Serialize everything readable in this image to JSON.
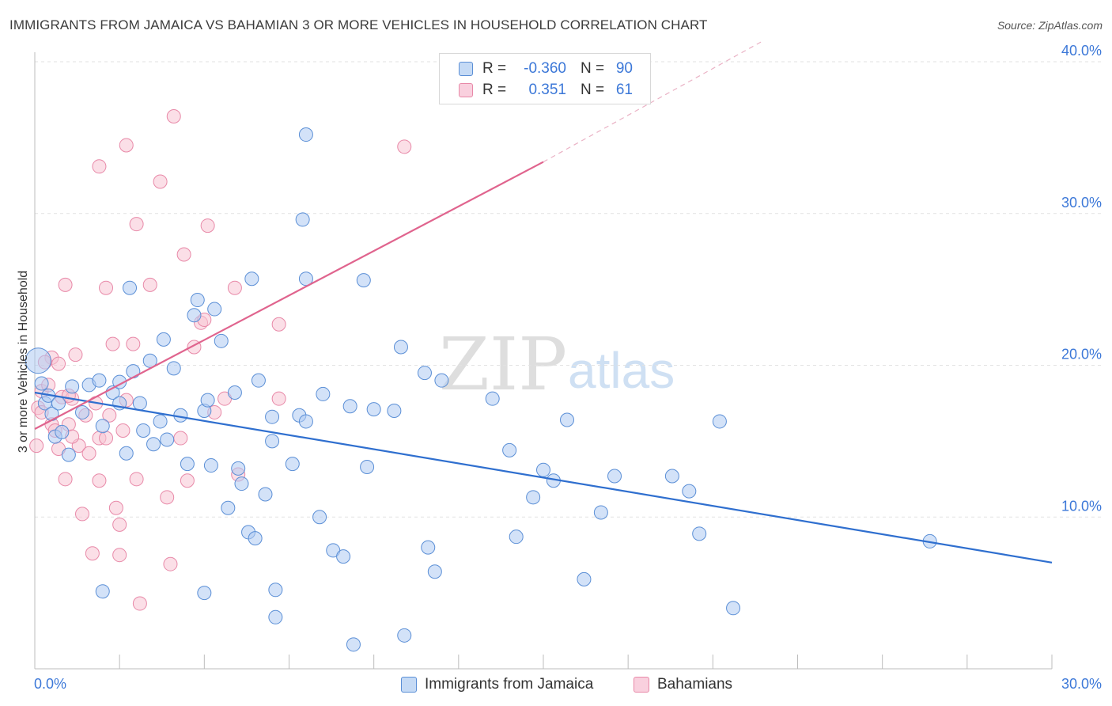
{
  "title": "IMMIGRANTS FROM JAMAICA VS BAHAMIAN 3 OR MORE VEHICLES IN HOUSEHOLD CORRELATION CHART",
  "source": "Source: ZipAtlas.com",
  "watermark": {
    "zip": "ZIP",
    "atlas": "atlas"
  },
  "colors": {
    "jamaica_fill": "#aecbf2",
    "jamaica_stroke": "#5b8fd6",
    "jamaica_line": "#2f6fcf",
    "bahamian_fill": "#f7c4d4",
    "bahamian_stroke": "#e889a8",
    "bahamian_line": "#e0648e",
    "accent_text": "#3c78d8"
  },
  "legend": {
    "rows": [
      {
        "r_label": "R =",
        "r_value": "-0.360",
        "n_label": "N =",
        "n_value": "90"
      },
      {
        "r_label": "R =",
        "r_value": "0.351",
        "n_label": "N =",
        "n_value": "61"
      }
    ]
  },
  "bottom_legend": [
    "Immigrants from Jamaica",
    "Bahamians"
  ],
  "chart_data": {
    "type": "scatter",
    "title": "IMMIGRANTS FROM JAMAICA VS BAHAMIAN 3 OR MORE VEHICLES IN HOUSEHOLD CORRELATION CHART",
    "xlabel": "",
    "ylabel": "3 or more Vehicles in Household",
    "xlim": [
      0,
      30
    ],
    "ylim": [
      0,
      40
    ],
    "x_ticks": [
      "0.0%",
      "30.0%"
    ],
    "y_ticks": [
      {
        "value": 10,
        "label": "10.0%"
      },
      {
        "value": 20,
        "label": "20.0%"
      },
      {
        "value": 30,
        "label": "30.0%"
      },
      {
        "value": 40,
        "label": "40.0%"
      }
    ],
    "grid": true,
    "legend_position": "top-center",
    "series": [
      {
        "name": "Immigrants from Jamaica",
        "r": -0.36,
        "n": 90,
        "trend": {
          "x": [
            0,
            30
          ],
          "y": [
            18.2,
            7.0
          ],
          "dashed_extension": false
        },
        "points": [
          [
            0.1,
            20.3
          ],
          [
            0.2,
            18.8
          ],
          [
            0.3,
            17.5
          ],
          [
            0.4,
            18.0
          ],
          [
            0.5,
            16.8
          ],
          [
            0.6,
            15.3
          ],
          [
            0.7,
            17.5
          ],
          [
            0.8,
            15.6
          ],
          [
            1.0,
            14.1
          ],
          [
            1.1,
            18.6
          ],
          [
            1.4,
            16.9
          ],
          [
            1.6,
            18.7
          ],
          [
            1.9,
            19.0
          ],
          [
            2.0,
            16.0
          ],
          [
            2.3,
            18.2
          ],
          [
            2.5,
            17.5
          ],
          [
            2.5,
            18.9
          ],
          [
            2.7,
            14.2
          ],
          [
            2.8,
            25.1
          ],
          [
            2.9,
            19.6
          ],
          [
            3.1,
            17.5
          ],
          [
            3.2,
            15.7
          ],
          [
            3.4,
            20.3
          ],
          [
            3.5,
            14.8
          ],
          [
            3.7,
            16.3
          ],
          [
            3.8,
            21.7
          ],
          [
            3.9,
            15.1
          ],
          [
            4.1,
            19.8
          ],
          [
            4.3,
            16.7
          ],
          [
            4.5,
            13.5
          ],
          [
            4.7,
            23.3
          ],
          [
            4.8,
            24.3
          ],
          [
            5.0,
            17.0
          ],
          [
            5.1,
            17.7
          ],
          [
            5.2,
            13.4
          ],
          [
            5.3,
            23.7
          ],
          [
            5.5,
            21.6
          ],
          [
            5.7,
            10.6
          ],
          [
            5.9,
            18.2
          ],
          [
            6.0,
            13.2
          ],
          [
            6.1,
            12.2
          ],
          [
            6.3,
            9.0
          ],
          [
            6.4,
            25.7
          ],
          [
            6.6,
            19.0
          ],
          [
            6.8,
            11.5
          ],
          [
            7.0,
            15.0
          ],
          [
            7.0,
            16.6
          ],
          [
            7.6,
            13.5
          ],
          [
            7.8,
            16.7
          ],
          [
            7.9,
            29.6
          ],
          [
            8.0,
            16.3
          ],
          [
            8.0,
            25.7
          ],
          [
            8.4,
            10.0
          ],
          [
            8.5,
            18.1
          ],
          [
            8.8,
            7.8
          ],
          [
            9.1,
            7.4
          ],
          [
            9.3,
            17.3
          ],
          [
            9.7,
            25.6
          ],
          [
            9.8,
            13.3
          ],
          [
            10.0,
            17.1
          ],
          [
            10.6,
            17.0
          ],
          [
            10.8,
            21.2
          ],
          [
            11.5,
            19.5
          ],
          [
            11.6,
            8.0
          ],
          [
            11.8,
            6.4
          ],
          [
            13.5,
            17.8
          ],
          [
            14.0,
            14.4
          ],
          [
            14.2,
            8.7
          ],
          [
            14.7,
            11.3
          ],
          [
            15.0,
            13.1
          ],
          [
            15.3,
            12.4
          ],
          [
            15.7,
            16.4
          ],
          [
            16.2,
            5.9
          ],
          [
            16.7,
            10.3
          ],
          [
            17.1,
            12.7
          ],
          [
            18.8,
            12.7
          ],
          [
            19.3,
            11.7
          ],
          [
            19.6,
            8.9
          ],
          [
            20.2,
            16.3
          ],
          [
            20.6,
            4.0
          ],
          [
            26.4,
            8.4
          ],
          [
            8.0,
            35.2
          ],
          [
            7.1,
            5.2
          ],
          [
            7.1,
            3.4
          ],
          [
            9.4,
            1.6
          ],
          [
            10.9,
            2.2
          ],
          [
            2.0,
            5.1
          ],
          [
            5.0,
            5.0
          ],
          [
            6.5,
            8.6
          ],
          [
            12.0,
            19.0
          ]
        ]
      },
      {
        "name": "Bahamians",
        "r": 0.351,
        "n": 61,
        "trend": {
          "x": [
            0,
            15
          ],
          "y": [
            15.8,
            33.4
          ],
          "dashed_extension": true,
          "dashed_to": {
            "x": 21.5,
            "y": 41.4
          }
        },
        "points": [
          [
            0.05,
            14.7
          ],
          [
            0.1,
            17.2
          ],
          [
            0.2,
            18.3
          ],
          [
            0.2,
            16.9
          ],
          [
            0.4,
            18.7
          ],
          [
            0.5,
            16.1
          ],
          [
            0.5,
            20.5
          ],
          [
            0.6,
            15.7
          ],
          [
            0.7,
            14.5
          ],
          [
            0.8,
            17.9
          ],
          [
            0.9,
            25.3
          ],
          [
            0.9,
            12.5
          ],
          [
            1.0,
            16.1
          ],
          [
            1.1,
            17.8
          ],
          [
            1.2,
            20.7
          ],
          [
            1.3,
            14.7
          ],
          [
            1.4,
            10.2
          ],
          [
            1.5,
            16.7
          ],
          [
            1.6,
            14.2
          ],
          [
            1.7,
            7.6
          ],
          [
            1.8,
            17.5
          ],
          [
            1.9,
            12.4
          ],
          [
            1.9,
            15.2
          ],
          [
            1.9,
            33.1
          ],
          [
            2.1,
            25.1
          ],
          [
            2.1,
            15.2
          ],
          [
            2.2,
            16.7
          ],
          [
            2.3,
            21.4
          ],
          [
            2.4,
            10.6
          ],
          [
            2.5,
            9.5
          ],
          [
            2.5,
            7.5
          ],
          [
            2.6,
            15.7
          ],
          [
            2.7,
            17.7
          ],
          [
            2.7,
            34.5
          ],
          [
            2.9,
            21.4
          ],
          [
            3.0,
            29.3
          ],
          [
            3.0,
            12.5
          ],
          [
            3.1,
            4.3
          ],
          [
            3.4,
            25.3
          ],
          [
            3.7,
            32.1
          ],
          [
            3.9,
            11.3
          ],
          [
            4.0,
            6.9
          ],
          [
            4.1,
            36.4
          ],
          [
            4.3,
            15.2
          ],
          [
            4.4,
            27.3
          ],
          [
            4.5,
            12.4
          ],
          [
            4.7,
            21.2
          ],
          [
            4.9,
            22.8
          ],
          [
            5.0,
            23.0
          ],
          [
            5.1,
            29.2
          ],
          [
            5.3,
            16.9
          ],
          [
            5.6,
            17.8
          ],
          [
            5.9,
            25.1
          ],
          [
            6.0,
            12.8
          ],
          [
            7.2,
            22.7
          ],
          [
            7.2,
            17.8
          ],
          [
            10.9,
            34.4
          ],
          [
            0.3,
            20.2
          ],
          [
            1.1,
            15.3
          ],
          [
            1.0,
            18.0
          ],
          [
            0.7,
            20.1
          ]
        ]
      }
    ]
  }
}
